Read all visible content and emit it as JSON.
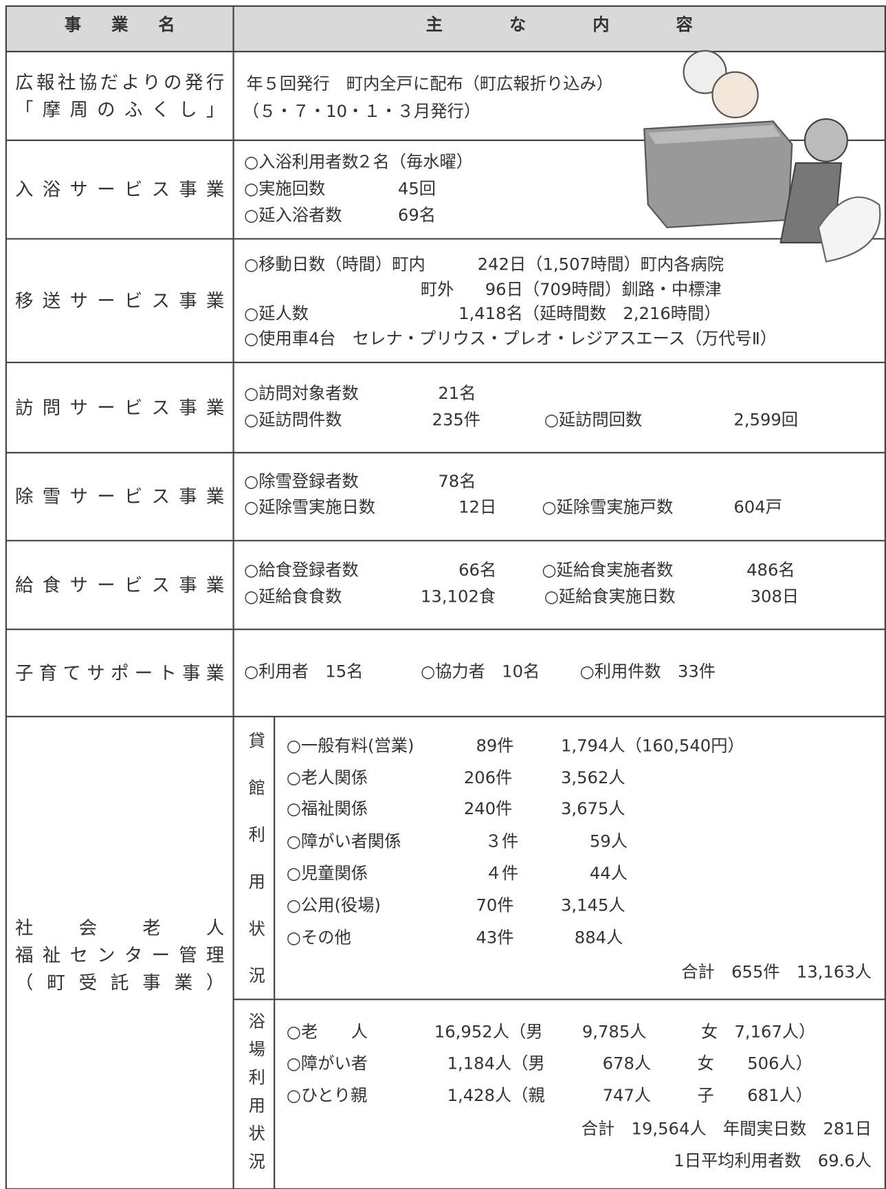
{
  "header": {
    "name": "事業名",
    "content": "主な内容"
  },
  "rows": [
    {
      "name": [
        "広報社協だよりの発行",
        "「摩周のふくし」"
      ],
      "lines": [
        [
          "年５回発行　町内全戸に配布（町広報折り込み）"
        ],
        [
          "（５・７・10・１・３月発行）"
        ]
      ]
    },
    {
      "name": [
        "入浴サービス事業"
      ],
      "lines": [
        [
          "○入浴利用者数",
          "２名（毎水曜）"
        ],
        [
          "○実施回数",
          "45回"
        ],
        [
          "○延入浴者数",
          "69名"
        ]
      ]
    },
    {
      "name": [
        "移送サービス事業"
      ],
      "lines": [
        [
          "○移動日数（時間）町内",
          "242日（1,507時間）町内各病院"
        ],
        [
          "町外",
          "96日（709時間）釧路・中標津"
        ],
        [
          "○延人数",
          "1,418名（延時間数　2,216時間）"
        ],
        [
          "○使用車4台　セレナ・プリウス・プレオ・レジアスエース（万代号Ⅱ）"
        ]
      ]
    },
    {
      "name": [
        "訪問サービス事業"
      ],
      "lines": [
        [
          "○訪問対象者数",
          "21名"
        ],
        [
          "○延訪問件数",
          "235件",
          "○延訪問回数",
          "2,599回"
        ]
      ]
    },
    {
      "name": [
        "除雪サービス事業"
      ],
      "lines": [
        [
          "○除雪登録者数",
          "78名"
        ],
        [
          "○延除雪実施日数",
          "12日",
          "○延除雪実施戸数",
          "604戸"
        ]
      ]
    },
    {
      "name": [
        "給食サービス事業"
      ],
      "lines": [
        [
          "○給食登録者数",
          "66名",
          "○延給食実施者数",
          "486名"
        ],
        [
          "○延給食食数",
          "13,102食",
          "○延給食実施日数",
          "308日"
        ]
      ]
    },
    {
      "name": [
        "子育てサポート事業"
      ],
      "lines": [
        [
          "○利用者　15名",
          "○協力者　10名",
          "○利用件数　33件"
        ]
      ]
    },
    {
      "name": [
        "社　会　老　人",
        "福祉センター管理",
        "（町受託事業）"
      ],
      "sections": [
        {
          "label": "貸館利用状況",
          "lines": [
            [
              "○一般有料(営業)",
              "89件",
              "1,794人（160,540円）"
            ],
            [
              "○老人関係",
              "206件",
              "3,562人"
            ],
            [
              "○福祉関係",
              "240件",
              "3,675人"
            ],
            [
              "○障がい者関係",
              "３件",
              "59人"
            ],
            [
              "○児童関係",
              "４件",
              "44人"
            ],
            [
              "○公用(役場)",
              "70件",
              "3,145人"
            ],
            [
              "○その他",
              "43件",
              "884人"
            ],
            [
              "合計　655件　13,163人"
            ]
          ]
        },
        {
          "label": "浴場利用状況",
          "lines": [
            [
              "○老　　人",
              "16,952人（男",
              "9,785人",
              "女　7,167人）"
            ],
            [
              "○障がい者",
              "1,184人（男",
              "678人",
              "女　　506人）"
            ],
            [
              "○ひとり親",
              "1,428人（親",
              "747人",
              "子　　681人）"
            ],
            [
              "合計　19,564人　年間実日数　281日"
            ],
            [
              "1日平均利用者数　69.6人"
            ]
          ]
        }
      ]
    }
  ]
}
